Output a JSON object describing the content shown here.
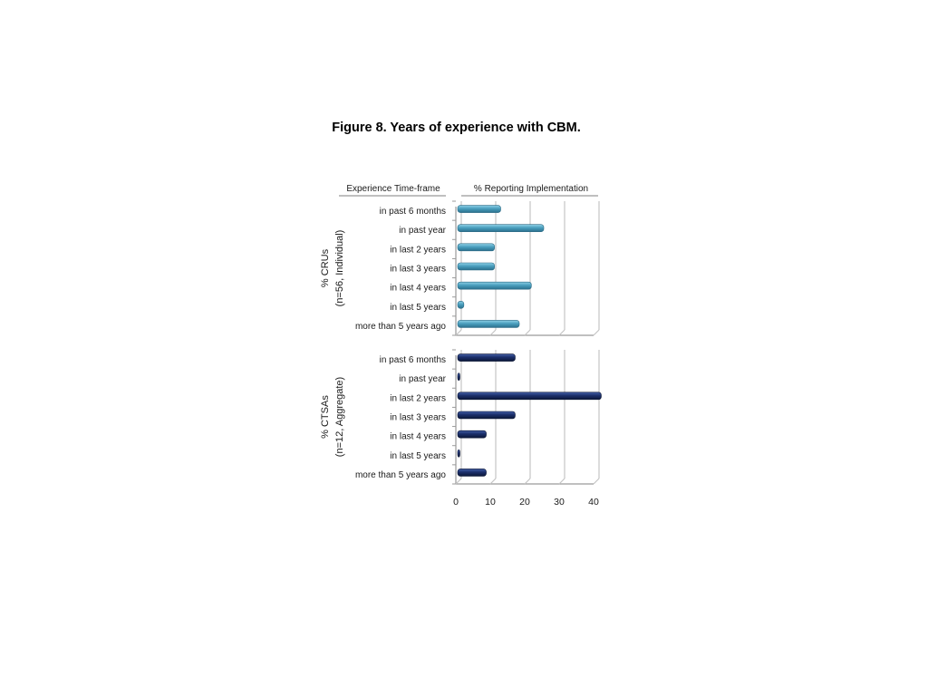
{
  "figure": {
    "title": "Figure 8. Years of experience with CBM."
  },
  "headers": {
    "left": "Experience Time-frame",
    "right": "% Reporting  Implementation"
  },
  "chart_data": {
    "type": "bar",
    "orientation": "horizontal",
    "title": "Figure 8. Years of experience with CBM.",
    "categories": [
      "in past 6 months",
      "in past year",
      "in last 2 years",
      "in last 3 years",
      "in last 4 years",
      "in last 5 years",
      "more than 5 years ago"
    ],
    "xlim": [
      0,
      40
    ],
    "xticks": [
      0,
      10,
      20,
      30,
      40
    ],
    "grid": true,
    "panels": [
      {
        "name_line1": "% CRUs",
        "name_line2": "(n=56, Individual)",
        "color": "#4a9fbe",
        "values": [
          12.5,
          25.0,
          10.7,
          10.7,
          21.4,
          1.8,
          17.9
        ]
      },
      {
        "name_line1": "% CTSAs",
        "name_line2": "(n=12, Aggregate)",
        "color": "#1b2f6b",
        "values": [
          16.7,
          0,
          41.7,
          16.7,
          8.3,
          0,
          8.3
        ]
      }
    ]
  }
}
